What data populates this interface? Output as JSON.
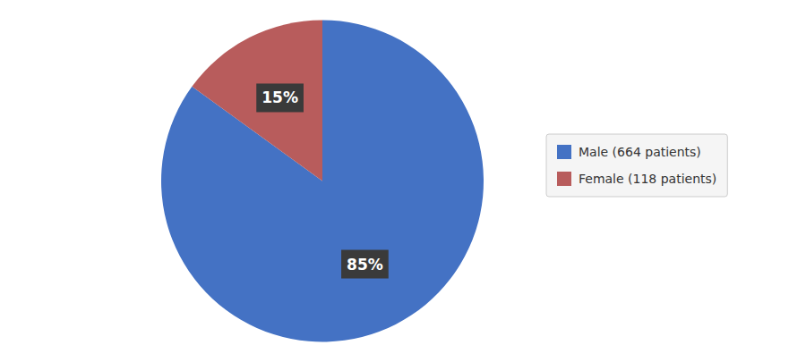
{
  "chart_data": {
    "type": "pie",
    "categories": [
      "Male (664 patients)",
      "Female (118 patients)"
    ],
    "values": [
      85,
      15
    ],
    "value_labels": [
      "85%",
      "15%"
    ],
    "colors": [
      "#4472C4",
      "#B85C5C"
    ],
    "data_labels": true,
    "legend": "right"
  }
}
